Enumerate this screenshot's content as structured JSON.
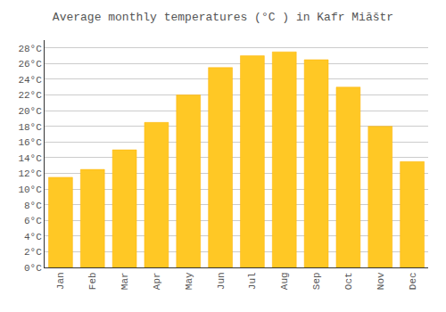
{
  "chart_data": {
    "type": "bar",
    "title": "Average monthly temperatures (°C ) in Kafr Miāštr",
    "categories": [
      "Jan",
      "Feb",
      "Mar",
      "Apr",
      "May",
      "Jun",
      "Jul",
      "Aug",
      "Sep",
      "Oct",
      "Nov",
      "Dec"
    ],
    "values": [
      11.5,
      12.5,
      15.0,
      18.5,
      22.0,
      25.5,
      27.0,
      27.5,
      26.5,
      23.0,
      18.0,
      13.5
    ],
    "color": "#FFC825",
    "ylim": [
      0,
      29
    ],
    "yticks": [
      {
        "value": 0,
        "label": "0°C"
      },
      {
        "value": 2,
        "label": "2°C"
      },
      {
        "value": 4,
        "label": "4°C"
      },
      {
        "value": 6,
        "label": "6°C"
      },
      {
        "value": 8,
        "label": "8°C"
      },
      {
        "value": 10,
        "label": "10°C"
      },
      {
        "value": 12,
        "label": "12°C"
      },
      {
        "value": 14,
        "label": "14°C"
      },
      {
        "value": 16,
        "label": "16°C"
      },
      {
        "value": 18,
        "label": "18°C"
      },
      {
        "value": 20,
        "label": "20°C"
      },
      {
        "value": 22,
        "label": "22°C"
      },
      {
        "value": 24,
        "label": "24°C"
      },
      {
        "value": 26,
        "label": "26°C"
      },
      {
        "value": 28,
        "label": "28°C"
      }
    ],
    "grid": true
  }
}
